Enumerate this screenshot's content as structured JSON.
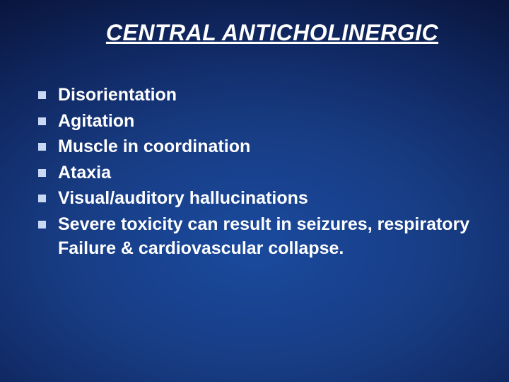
{
  "slide": {
    "title": "CENTRAL ANTICHOLINERGIC",
    "title_fontsize": 32,
    "title_color": "#ffffff",
    "bullets": [
      "Disorientation",
      "Agitation",
      "Muscle in coordination",
      "Ataxia",
      "Visual/auditory hallucinations",
      " Severe toxicity can result in seizures, respiratory Failure &  cardiovascular collapse."
    ],
    "bullet_fontsize": 25,
    "bullet_marker_color": "#c9d9f5",
    "text_color": "#ffffff",
    "background_gradient": {
      "center": "#1a4a9e",
      "mid": "#102862",
      "edge": "#050a20"
    }
  }
}
